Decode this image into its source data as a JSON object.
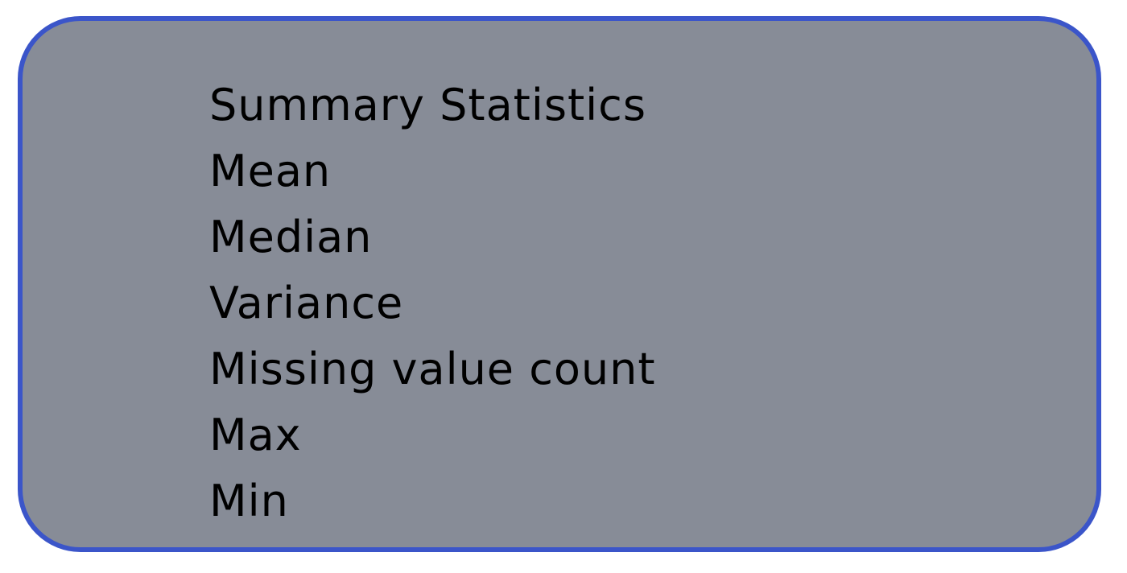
{
  "card": {
    "title": "Summary Statistics",
    "items": [
      "Mean",
      "Median",
      "Variance",
      "Missing value count",
      "Max",
      "Min"
    ]
  },
  "colors": {
    "card_fill": "#878c97",
    "card_border": "#3b55c9",
    "text": "#000000"
  }
}
